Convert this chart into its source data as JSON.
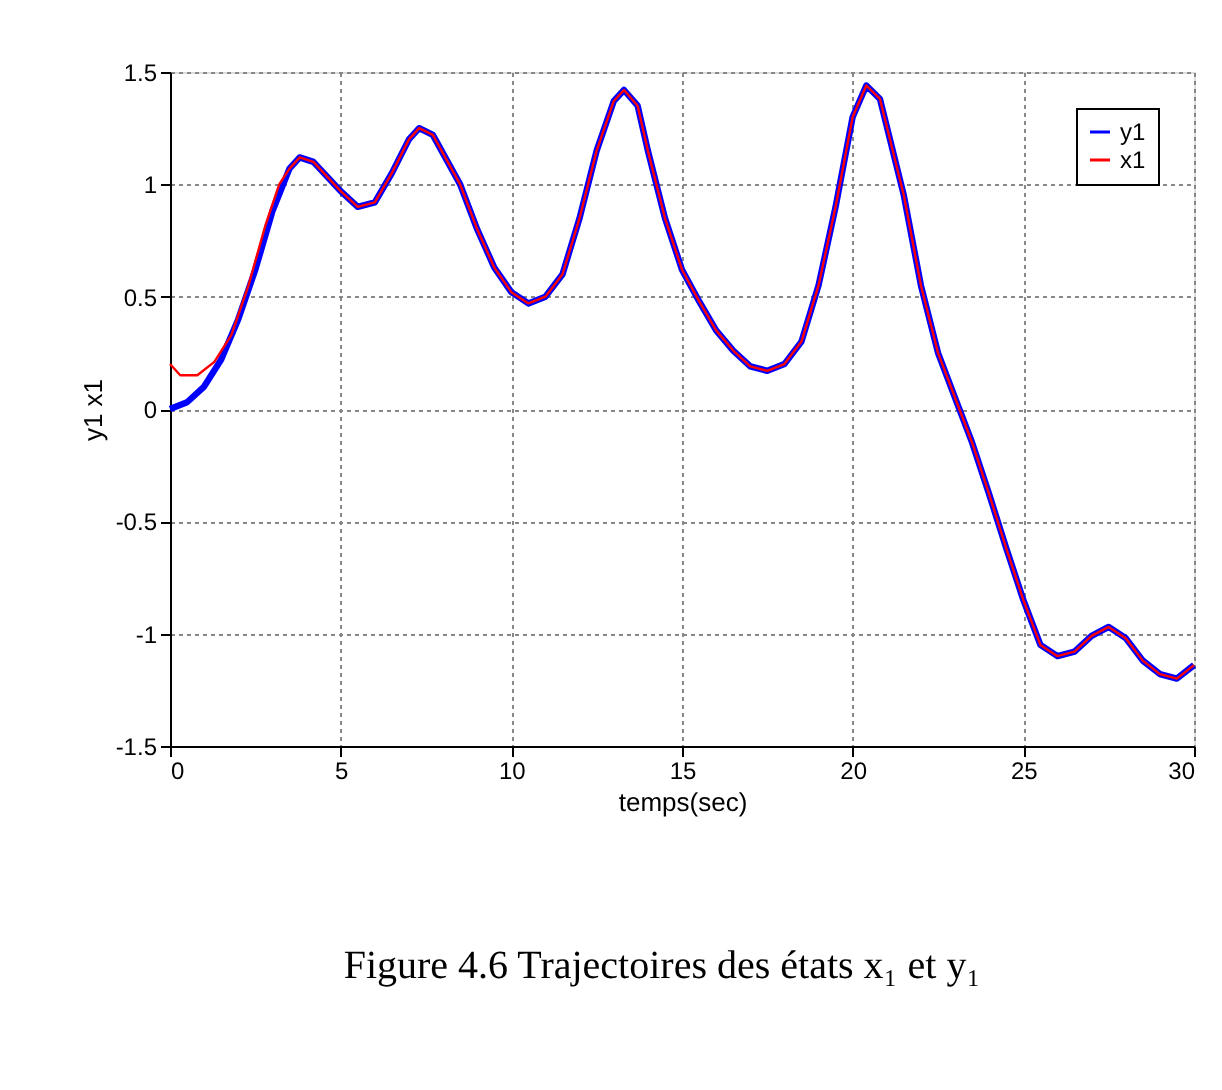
{
  "chart_data": {
    "type": "line",
    "xlabel": "temps(sec)",
    "ylabel": "y1 x1",
    "xlim": [
      0,
      30
    ],
    "xticks": [
      0,
      5,
      10,
      15,
      20,
      25,
      30
    ],
    "ylim": [
      -1.5,
      1.5
    ],
    "yticks": [
      -1.5,
      -1,
      -0.5,
      0,
      0.5,
      1,
      1.5
    ],
    "grid": true,
    "legend": "top right",
    "line_style": "solid",
    "marker": "none",
    "annotations": [
      "Figure 4.6 Trajectoires des états x₁ et y₁"
    ],
    "series": [
      {
        "name": "y1",
        "color": "#0000ff",
        "x": [
          0,
          0.5,
          1,
          1.5,
          2,
          2.5,
          3,
          3.5,
          3.8,
          4.2,
          5,
          5.5,
          6,
          6.5,
          7,
          7.3,
          7.7,
          8.5,
          9,
          9.5,
          10,
          10.5,
          11,
          11.5,
          12,
          12.5,
          13,
          13.3,
          13.7,
          14,
          14.5,
          15,
          15.5,
          16,
          16.5,
          17,
          17.5,
          18,
          18.5,
          19,
          19.5,
          20,
          20.4,
          20.8,
          21.5,
          22,
          22.5,
          23,
          23.5,
          24,
          24.5,
          25,
          25.5,
          26,
          26.5,
          27,
          27.5,
          28,
          28.5,
          29,
          29.5,
          30
        ],
        "values": [
          0,
          0.03,
          0.1,
          0.22,
          0.4,
          0.62,
          0.88,
          1.07,
          1.12,
          1.1,
          0.97,
          0.9,
          0.92,
          1.05,
          1.2,
          1.25,
          1.22,
          1.0,
          0.8,
          0.63,
          0.52,
          0.47,
          0.5,
          0.6,
          0.85,
          1.15,
          1.37,
          1.42,
          1.35,
          1.15,
          0.85,
          0.62,
          0.48,
          0.35,
          0.26,
          0.19,
          0.17,
          0.2,
          0.3,
          0.55,
          0.9,
          1.3,
          1.44,
          1.38,
          0.95,
          0.55,
          0.25,
          0.05,
          -0.15,
          -0.38,
          -0.62,
          -0.85,
          -1.05,
          -1.1,
          -1.08,
          -1.01,
          -0.97,
          -1.02,
          -1.12,
          -1.18,
          -1.2,
          -1.14
        ]
      },
      {
        "name": "x1",
        "color": "#ff0000",
        "x": [
          0,
          0.3,
          0.8,
          1.3,
          1.8,
          2.3,
          2.8,
          3.2,
          3.5,
          3.8,
          4.2,
          5,
          5.5,
          6,
          6.5,
          7,
          7.3,
          7.7,
          8.5,
          9,
          9.5,
          10,
          10.5,
          11,
          11.5,
          12,
          12.5,
          13,
          13.3,
          13.7,
          14,
          14.5,
          15,
          15.5,
          16,
          16.5,
          17,
          17.5,
          18,
          18.5,
          19,
          19.5,
          20,
          20.4,
          20.8,
          21.5,
          22,
          22.5,
          23,
          23.5,
          24,
          24.5,
          25,
          25.5,
          26,
          26.5,
          27,
          27.5,
          28,
          28.5,
          29,
          29.5,
          30
        ],
        "values": [
          0.2,
          0.15,
          0.15,
          0.21,
          0.33,
          0.55,
          0.82,
          1.0,
          1.07,
          1.12,
          1.1,
          0.97,
          0.9,
          0.92,
          1.05,
          1.2,
          1.25,
          1.22,
          1.0,
          0.8,
          0.63,
          0.52,
          0.47,
          0.5,
          0.6,
          0.85,
          1.15,
          1.37,
          1.42,
          1.35,
          1.15,
          0.85,
          0.62,
          0.48,
          0.35,
          0.26,
          0.19,
          0.17,
          0.2,
          0.3,
          0.55,
          0.9,
          1.3,
          1.44,
          1.38,
          0.95,
          0.55,
          0.25,
          0.05,
          -0.15,
          -0.38,
          -0.62,
          -0.85,
          -1.05,
          -1.1,
          -1.08,
          -1.01,
          -0.97,
          -1.02,
          -1.12,
          -1.18,
          -1.2,
          -1.14
        ]
      }
    ]
  }
}
